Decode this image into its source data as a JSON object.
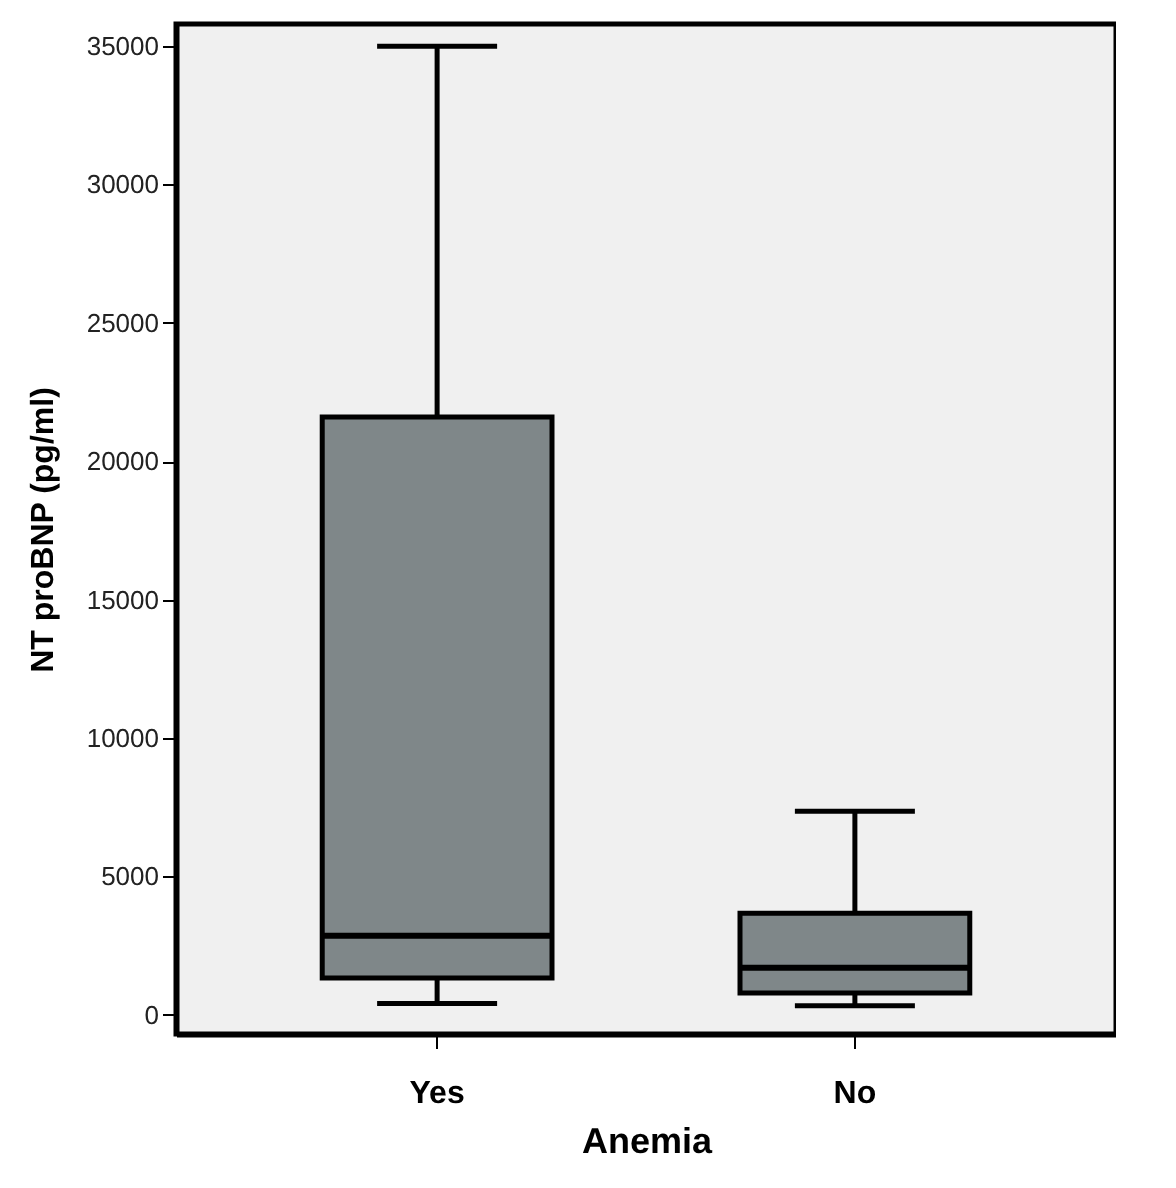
{
  "chart_data": {
    "type": "box",
    "xlabel": "Anemia",
    "ylabel": "NT proBNP (pg/ml)",
    "categories": [
      "Yes",
      "No"
    ],
    "boxes": [
      {
        "low": 400,
        "q1": 1320,
        "median": 2850,
        "q3": 21600,
        "high": 35000
      },
      {
        "low": 320,
        "q1": 780,
        "median": 1690,
        "q3": 3660,
        "high": 7350
      }
    ],
    "color": "#7f8789",
    "ylim": [
      -700,
      35800
    ],
    "yticks": [
      0,
      5000,
      10000,
      15000,
      20000,
      25000,
      30000,
      35000
    ],
    "grid": false
  }
}
